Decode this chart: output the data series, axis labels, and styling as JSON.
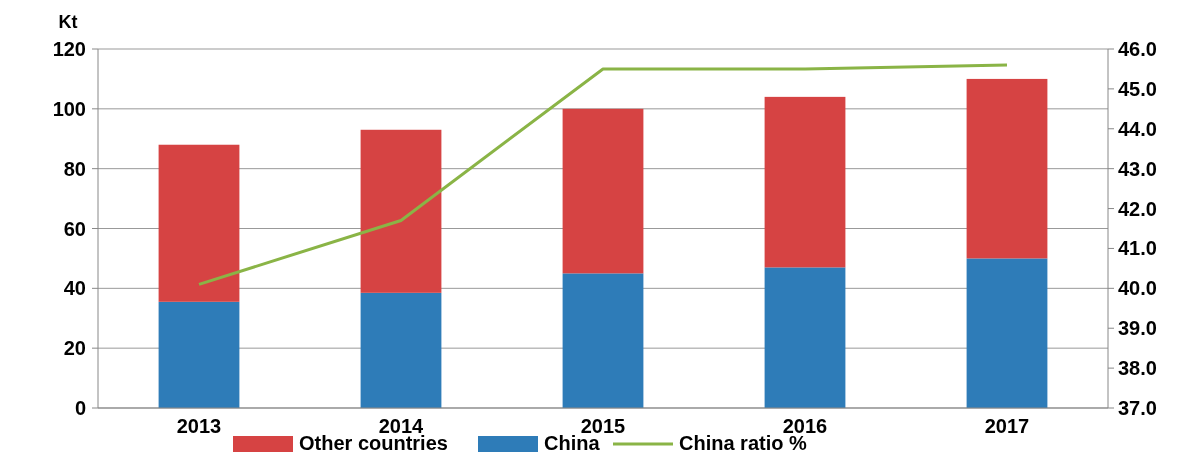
{
  "chart_data": {
    "type": "bar",
    "stacked": true,
    "ylabel": "Kt",
    "categories": [
      "2013",
      "2014",
      "2015",
      "2016",
      "2017"
    ],
    "series": [
      {
        "name": "China",
        "color": "#2e7cb8",
        "values": [
          35.5,
          38.5,
          45,
          47,
          50
        ]
      },
      {
        "name": "Other countries",
        "color": "#d64343",
        "values": [
          52.5,
          54.5,
          55,
          57,
          60
        ]
      },
      {
        "name": "China ratio %",
        "type": "line",
        "axis": "y2",
        "color": "#8ab446",
        "values": [
          40.1,
          41.7,
          45.5,
          45.5,
          45.6
        ]
      }
    ],
    "ylim": [
      0,
      120
    ],
    "yticks": [
      0,
      20,
      40,
      60,
      80,
      100,
      120
    ],
    "y2lim": [
      37,
      46
    ],
    "y2ticks": [
      {
        "value": 37,
        "label": "37.0"
      },
      {
        "value": 38,
        "label": "38.0"
      },
      {
        "value": 39,
        "label": "39.0"
      },
      {
        "value": 40,
        "label": "40.0"
      },
      {
        "value": 41,
        "label": "41.0"
      },
      {
        "value": 42,
        "label": "42.0"
      },
      {
        "value": 43,
        "label": "43.0"
      },
      {
        "value": 44,
        "label": "44.0"
      },
      {
        "value": 45,
        "label": "45.0"
      },
      {
        "value": 46,
        "label": "46.0"
      }
    ],
    "grid": "y",
    "legend": "bottom",
    "marker": "none"
  }
}
